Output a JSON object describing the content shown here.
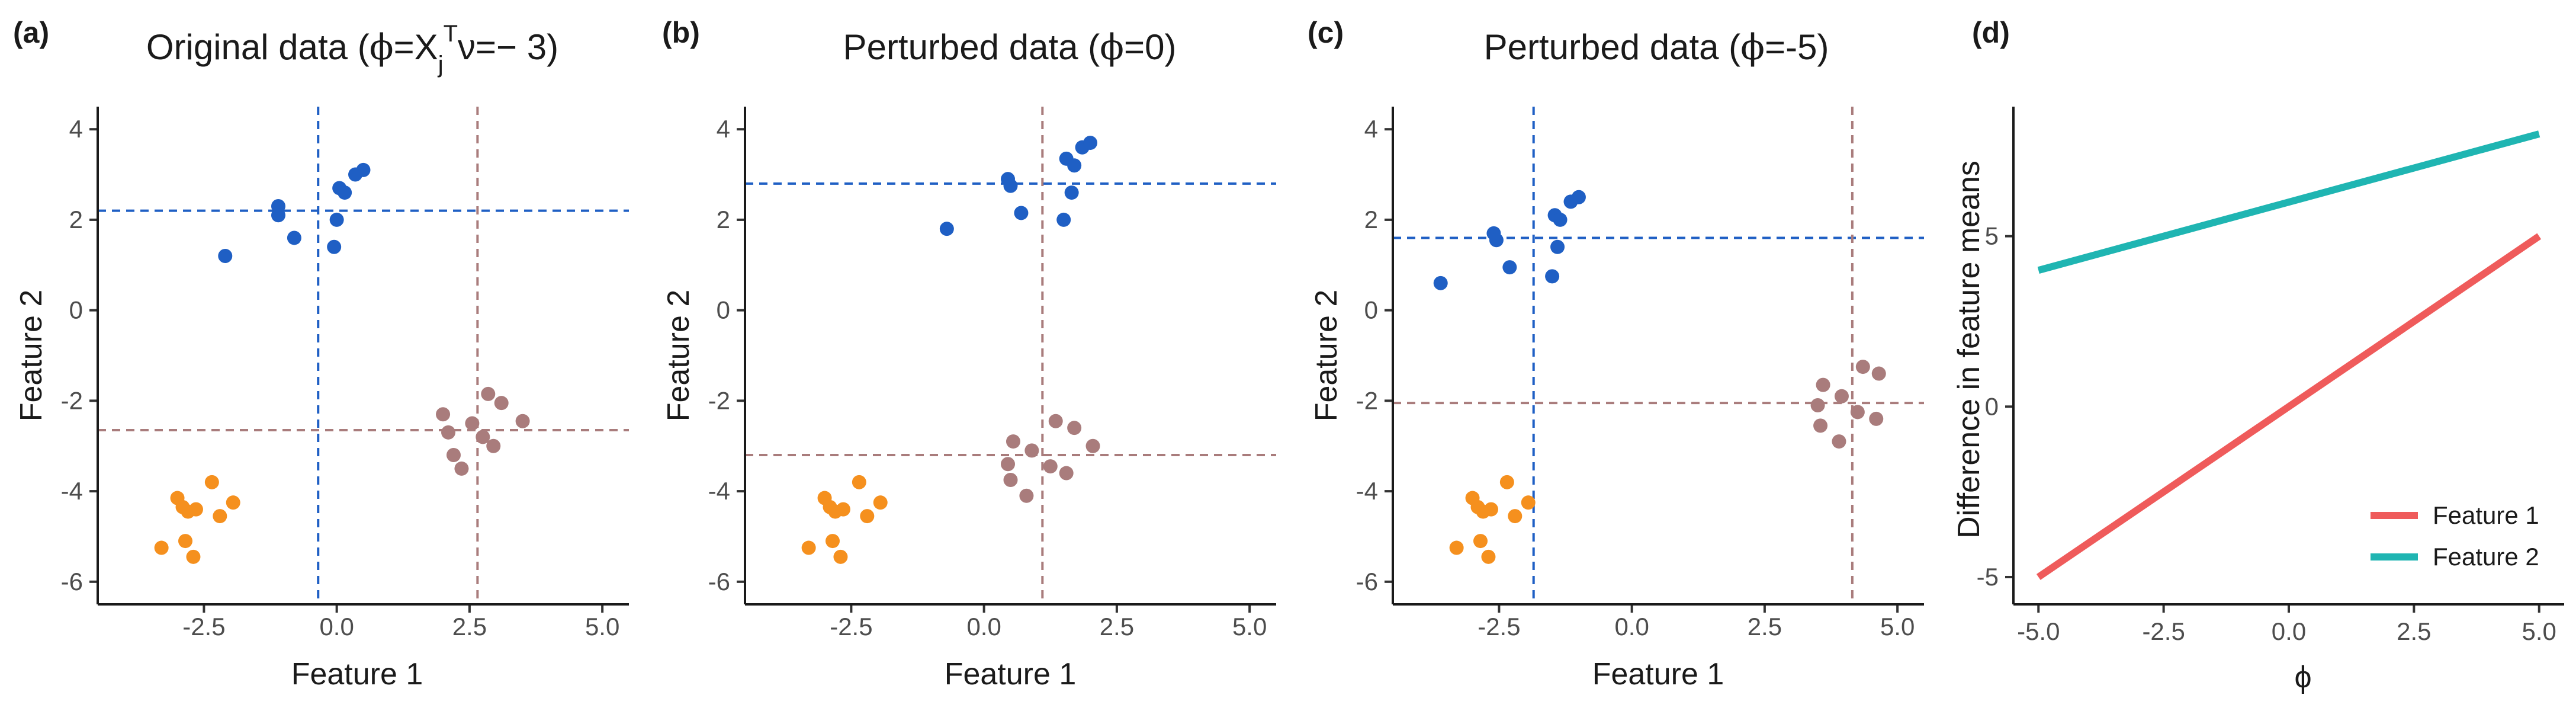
{
  "chart_data": [
    {
      "panel_tag": "(a)",
      "type": "scatter",
      "title": "Original data (ϕ=Xⱼᵀν=−3)",
      "title_parts": [
        "Original data (",
        "ϕ",
        "=X",
        "j",
        "T",
        "ν=− 3)"
      ],
      "xlabel": "Feature 1",
      "ylabel": "Feature 2",
      "xlim": [
        -4.5,
        5.5
      ],
      "ylim": [
        -6.5,
        4.5
      ],
      "xticks": [
        -2.5,
        0.0,
        2.5,
        5.0
      ],
      "xtick_labels": [
        "-2.5",
        "0.0",
        "2.5",
        "5.0"
      ],
      "yticks": [
        -6,
        -4,
        -2,
        0,
        2,
        4
      ],
      "ytick_labels": [
        "-6",
        "-4",
        "-2",
        "0",
        "2",
        "4"
      ],
      "series": [
        {
          "name": "cluster-blue",
          "color": "#1f5fc4",
          "points": [
            [
              -2.1,
              1.2
            ],
            [
              -1.1,
              2.3
            ],
            [
              -1.1,
              2.1
            ],
            [
              -0.8,
              1.6
            ],
            [
              -0.05,
              1.4
            ],
            [
              0.0,
              2.0
            ],
            [
              0.05,
              2.7
            ],
            [
              0.15,
              2.6
            ],
            [
              0.35,
              3.0
            ],
            [
              0.5,
              3.1
            ]
          ]
        },
        {
          "name": "cluster-orange",
          "color": "#f5901e",
          "points": [
            [
              -3.3,
              -5.25
            ],
            [
              -3.0,
              -4.15
            ],
            [
              -2.9,
              -4.35
            ],
            [
              -2.8,
              -4.45
            ],
            [
              -2.85,
              -5.1
            ],
            [
              -2.7,
              -5.45
            ],
            [
              -2.65,
              -4.4
            ],
            [
              -2.35,
              -3.8
            ],
            [
              -2.2,
              -4.55
            ],
            [
              -1.95,
              -4.25
            ]
          ]
        },
        {
          "name": "cluster-mauve",
          "color": "#a97c7c",
          "points": [
            [
              2.0,
              -2.3
            ],
            [
              2.1,
              -2.7
            ],
            [
              2.2,
              -3.2
            ],
            [
              2.35,
              -3.5
            ],
            [
              2.55,
              -2.5
            ],
            [
              2.75,
              -2.8
            ],
            [
              2.85,
              -1.85
            ],
            [
              2.95,
              -3.0
            ],
            [
              3.1,
              -2.05
            ],
            [
              3.5,
              -2.45
            ]
          ]
        }
      ],
      "reference_lines": [
        {
          "orientation": "vertical",
          "axis": "x",
          "value": -0.35,
          "color": "#1f5fc4"
        },
        {
          "orientation": "horizontal",
          "axis": "y",
          "value": 2.2,
          "color": "#1f5fc4"
        },
        {
          "orientation": "vertical",
          "axis": "x",
          "value": 2.65,
          "color": "#a97c7c"
        },
        {
          "orientation": "horizontal",
          "axis": "y",
          "value": -2.65,
          "color": "#a97c7c"
        }
      ]
    },
    {
      "panel_tag": "(b)",
      "type": "scatter",
      "title": "Perturbed data (ϕ=0)",
      "title_parts": [
        "Perturbed data (",
        "ϕ",
        "=0)"
      ],
      "xlabel": "Feature 1",
      "ylabel": "Feature 2",
      "xlim": [
        -4.5,
        5.5
      ],
      "ylim": [
        -6.5,
        4.5
      ],
      "xticks": [
        -2.5,
        0.0,
        2.5,
        5.0
      ],
      "xtick_labels": [
        "-2.5",
        "0.0",
        "2.5",
        "5.0"
      ],
      "yticks": [
        -6,
        -4,
        -2,
        0,
        2,
        4
      ],
      "ytick_labels": [
        "-6",
        "-4",
        "-2",
        "0",
        "2",
        "4"
      ],
      "series": [
        {
          "name": "cluster-blue",
          "color": "#1f5fc4",
          "points": [
            [
              -0.7,
              1.8
            ],
            [
              0.45,
              2.9
            ],
            [
              0.5,
              2.75
            ],
            [
              0.7,
              2.15
            ],
            [
              1.5,
              2.0
            ],
            [
              1.55,
              3.35
            ],
            [
              1.65,
              2.6
            ],
            [
              1.7,
              3.2
            ],
            [
              1.85,
              3.6
            ],
            [
              2.0,
              3.7
            ]
          ]
        },
        {
          "name": "cluster-orange",
          "color": "#f5901e",
          "points": [
            [
              -3.3,
              -5.25
            ],
            [
              -3.0,
              -4.15
            ],
            [
              -2.9,
              -4.35
            ],
            [
              -2.8,
              -4.45
            ],
            [
              -2.85,
              -5.1
            ],
            [
              -2.7,
              -5.45
            ],
            [
              -2.65,
              -4.4
            ],
            [
              -2.35,
              -3.8
            ],
            [
              -2.2,
              -4.55
            ],
            [
              -1.95,
              -4.25
            ]
          ]
        },
        {
          "name": "cluster-mauve",
          "color": "#a97c7c",
          "points": [
            [
              0.45,
              -3.4
            ],
            [
              0.5,
              -3.75
            ],
            [
              0.55,
              -2.9
            ],
            [
              0.8,
              -4.1
            ],
            [
              0.9,
              -3.1
            ],
            [
              1.25,
              -3.45
            ],
            [
              1.35,
              -2.45
            ],
            [
              1.55,
              -3.6
            ],
            [
              1.7,
              -2.6
            ],
            [
              2.05,
              -3.0
            ]
          ]
        }
      ],
      "reference_lines": [
        {
          "orientation": "vertical",
          "axis": "x",
          "value": 1.1,
          "color": "#a97c7c"
        },
        {
          "orientation": "horizontal",
          "axis": "y",
          "value": 2.8,
          "color": "#1f5fc4"
        },
        {
          "orientation": "horizontal",
          "axis": "y",
          "value": -3.2,
          "color": "#a97c7c"
        }
      ]
    },
    {
      "panel_tag": "(c)",
      "type": "scatter",
      "title": "Perturbed data (ϕ=-5)",
      "title_parts": [
        "Perturbed data (",
        "ϕ",
        "=-5)"
      ],
      "xlabel": "Feature 1",
      "ylabel": "Feature 2",
      "xlim": [
        -4.5,
        5.5
      ],
      "ylim": [
        -6.5,
        4.5
      ],
      "xticks": [
        -2.5,
        0.0,
        2.5,
        5.0
      ],
      "xtick_labels": [
        "-2.5",
        "0.0",
        "2.5",
        "5.0"
      ],
      "yticks": [
        -6,
        -4,
        -2,
        0,
        2,
        4
      ],
      "ytick_labels": [
        "-6",
        "-4",
        "-2",
        "0",
        "2",
        "4"
      ],
      "series": [
        {
          "name": "cluster-blue",
          "color": "#1f5fc4",
          "points": [
            [
              -3.6,
              0.6
            ],
            [
              -2.6,
              1.7
            ],
            [
              -2.55,
              1.55
            ],
            [
              -2.3,
              0.95
            ],
            [
              -1.5,
              0.75
            ],
            [
              -1.45,
              2.1
            ],
            [
              -1.4,
              1.4
            ],
            [
              -1.35,
              2.0
            ],
            [
              -1.15,
              2.4
            ],
            [
              -1.0,
              2.5
            ]
          ]
        },
        {
          "name": "cluster-orange",
          "color": "#f5901e",
          "points": [
            [
              -3.3,
              -5.25
            ],
            [
              -3.0,
              -4.15
            ],
            [
              -2.9,
              -4.35
            ],
            [
              -2.8,
              -4.45
            ],
            [
              -2.85,
              -5.1
            ],
            [
              -2.7,
              -5.45
            ],
            [
              -2.65,
              -4.4
            ],
            [
              -2.35,
              -3.8
            ],
            [
              -2.2,
              -4.55
            ],
            [
              -1.95,
              -4.25
            ]
          ]
        },
        {
          "name": "cluster-mauve",
          "color": "#a97c7c",
          "points": [
            [
              3.5,
              -2.1
            ],
            [
              3.55,
              -2.55
            ],
            [
              3.6,
              -1.65
            ],
            [
              3.9,
              -2.9
            ],
            [
              3.95,
              -1.9
            ],
            [
              4.25,
              -2.25
            ],
            [
              4.35,
              -1.25
            ],
            [
              4.6,
              -2.4
            ],
            [
              4.65,
              -1.4
            ]
          ]
        }
      ],
      "reference_lines": [
        {
          "orientation": "vertical",
          "axis": "x",
          "value": -1.85,
          "color": "#1f5fc4"
        },
        {
          "orientation": "horizontal",
          "axis": "y",
          "value": 1.6,
          "color": "#1f5fc4"
        },
        {
          "orientation": "vertical",
          "axis": "x",
          "value": 4.15,
          "color": "#a97c7c"
        },
        {
          "orientation": "horizontal",
          "axis": "y",
          "value": -2.05,
          "color": "#a97c7c"
        }
      ]
    },
    {
      "panel_tag": "(d)",
      "type": "line",
      "title": "",
      "xlabel": "ϕ",
      "ylabel": "Difference in feature means",
      "xlim": [
        -5.5,
        5.5
      ],
      "ylim": [
        -5.8,
        8.8
      ],
      "xticks": [
        -5.0,
        -2.5,
        0.0,
        2.5,
        5.0
      ],
      "xtick_labels": [
        "-5.0",
        "-2.5",
        "0.0",
        "2.5",
        "5.0"
      ],
      "yticks": [
        -5,
        0,
        5
      ],
      "ytick_labels": [
        "-5",
        "0",
        "5"
      ],
      "series": [
        {
          "name": "Feature 1",
          "color": "#ef5b5b",
          "x": [
            -5,
            5
          ],
          "values": [
            -5,
            5
          ]
        },
        {
          "name": "Feature 2",
          "color": "#1fb5b2",
          "x": [
            -5,
            5
          ],
          "values": [
            4,
            8
          ]
        }
      ],
      "legend": {
        "position": "bottom-right",
        "entries": [
          "Feature 1",
          "Feature 2"
        ]
      }
    }
  ]
}
